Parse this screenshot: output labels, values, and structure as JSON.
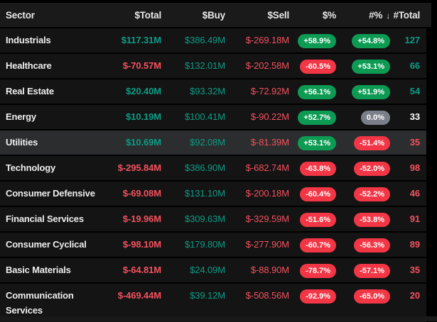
{
  "table": {
    "columns": [
      {
        "label": "Sector"
      },
      {
        "label": "$Total"
      },
      {
        "label": "$Buy"
      },
      {
        "label": "$Sell"
      },
      {
        "label": "$%"
      },
      {
        "label": "#%",
        "sort": "desc"
      },
      {
        "label": "#Total"
      }
    ],
    "sort_icon": "↓",
    "rows": [
      {
        "sector": "Industrials",
        "total": "$117.31M",
        "buy": "$386.49M",
        "sell": "$-269.18M",
        "pct_dollar": "+58.9%",
        "pct_count": "+54.8%",
        "count_total": "127",
        "highlighted": false
      },
      {
        "sector": "Healthcare",
        "total": "$-70.57M",
        "buy": "$132.01M",
        "sell": "$-202.58M",
        "pct_dollar": "-60.5%",
        "pct_count": "+53.1%",
        "count_total": "66",
        "highlighted": false
      },
      {
        "sector": "Real Estate",
        "total": "$20.40M",
        "buy": "$93.32M",
        "sell": "$-72.92M",
        "pct_dollar": "+56.1%",
        "pct_count": "+51.9%",
        "count_total": "54",
        "highlighted": false
      },
      {
        "sector": "Energy",
        "total": "$10.19M",
        "buy": "$100.41M",
        "sell": "$-90.22M",
        "pct_dollar": "+52.7%",
        "pct_count": "0.0%",
        "count_total": "33",
        "highlighted": false
      },
      {
        "sector": "Utilities",
        "total": "$10.69M",
        "buy": "$92.08M",
        "sell": "$-81.39M",
        "pct_dollar": "+53.1%",
        "pct_count": "-51.4%",
        "count_total": "35",
        "highlighted": true
      },
      {
        "sector": "Technology",
        "total": "$-295.84M",
        "buy": "$386.90M",
        "sell": "$-682.74M",
        "pct_dollar": "-63.8%",
        "pct_count": "-52.0%",
        "count_total": "98",
        "highlighted": false
      },
      {
        "sector": "Consumer Defensive",
        "total": "$-69.08M",
        "buy": "$131.10M",
        "sell": "$-200.18M",
        "pct_dollar": "-60.4%",
        "pct_count": "-52.2%",
        "count_total": "46",
        "highlighted": false
      },
      {
        "sector": "Financial Services",
        "total": "$-19.96M",
        "buy": "$309.63M",
        "sell": "$-329.59M",
        "pct_dollar": "-51.6%",
        "pct_count": "-53.8%",
        "count_total": "91",
        "highlighted": false
      },
      {
        "sector": "Consumer Cyclical",
        "total": "$-98.10M",
        "buy": "$179.80M",
        "sell": "$-277.90M",
        "pct_dollar": "-60.7%",
        "pct_count": "-56.3%",
        "count_total": "89",
        "highlighted": false
      },
      {
        "sector": "Basic Materials",
        "total": "$-64.81M",
        "buy": "$24.09M",
        "sell": "$-88.90M",
        "pct_dollar": "-78.7%",
        "pct_count": "-57.1%",
        "count_total": "35",
        "highlighted": false
      },
      {
        "sector": "Communication Services",
        "total": "$-469.44M",
        "buy": "$39.12M",
        "sell": "$-508.56M",
        "pct_dollar": "-92.9%",
        "pct_count": "-65.0%",
        "count_total": "20",
        "highlighted": false
      }
    ]
  },
  "colors": {
    "positive_text": "#0c9c85",
    "negative_text": "#f5515f",
    "count_neutral_text": "#ffffff",
    "badge_positive": "#0d9b54",
    "badge_negative": "#f23645",
    "badge_neutral": "#7b7f8a",
    "header_bg": "#1a1a1a",
    "row_bg": "#141414",
    "row_highlight_bg": "#2b2d2e"
  }
}
